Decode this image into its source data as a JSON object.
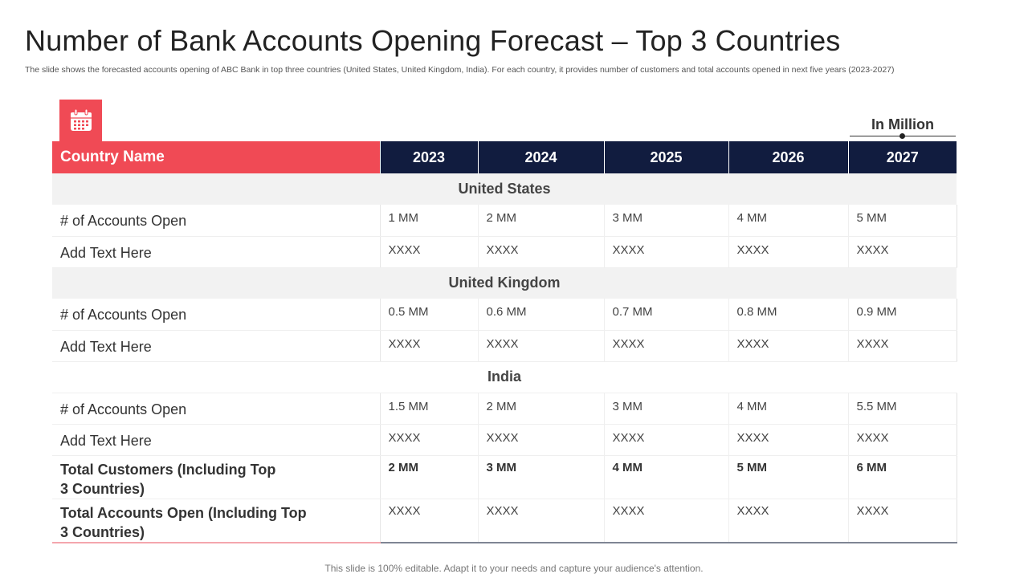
{
  "title": "Number of Bank Accounts Opening Forecast – Top 3 Countries",
  "subtitle": "The slide shows the forecasted accounts opening of ABC Bank in top three countries (United States, United Kingdom, India). For each country, it provides number of customers and total accounts opened in next five years (2023-2027)",
  "unit_label": "In Million",
  "icon": "calendar-icon",
  "colors": {
    "accent": "#f04a55",
    "navy": "#111c3f",
    "section_bg": "#f2f2f2"
  },
  "table": {
    "header": {
      "name": "Country Name",
      "years": [
        "2023",
        "2024",
        "2025",
        "2026",
        "2027"
      ]
    },
    "sections": [
      {
        "name": "United States",
        "rows": [
          {
            "label": "# of Accounts Open",
            "values": [
              "1 MM",
              "2 MM",
              "3 MM",
              "4 MM",
              "5 MM"
            ]
          },
          {
            "label": "Add Text Here",
            "values": [
              "XXXX",
              "XXXX",
              "XXXX",
              "XXXX",
              "XXXX"
            ]
          }
        ]
      },
      {
        "name": "United Kingdom",
        "rows": [
          {
            "label": "# of Accounts Open",
            "values": [
              "0.5 MM",
              "0.6 MM",
              "0.7 MM",
              "0.8 MM",
              "0.9 MM"
            ]
          },
          {
            "label": "Add Text Here",
            "values": [
              "XXXX",
              "XXXX",
              "XXXX",
              "XXXX",
              "XXXX"
            ]
          }
        ]
      },
      {
        "name": "India",
        "rows": [
          {
            "label": "# of Accounts Open",
            "values": [
              "1.5 MM",
              "2 MM",
              "3 MM",
              "4 MM",
              "5.5 MM"
            ]
          },
          {
            "label": "Add Text Here",
            "values": [
              "XXXX",
              "XXXX",
              "XXXX",
              "XXXX",
              "XXXX"
            ]
          }
        ]
      }
    ],
    "totals": [
      {
        "label_line1": "Total Customers (Including Top",
        "label_line2": "3 Countries)",
        "values": [
          "2 MM",
          "3 MM",
          "4 MM",
          "5 MM",
          "6 MM"
        ]
      },
      {
        "label_line1": "Total Accounts Open (Including Top",
        "label_line2": "3 Countries)",
        "values": [
          "XXXX",
          "XXXX",
          "XXXX",
          "XXXX",
          "XXXX"
        ]
      }
    ]
  },
  "footer": "This slide is 100% editable. Adapt it to your needs and capture your audience's attention."
}
